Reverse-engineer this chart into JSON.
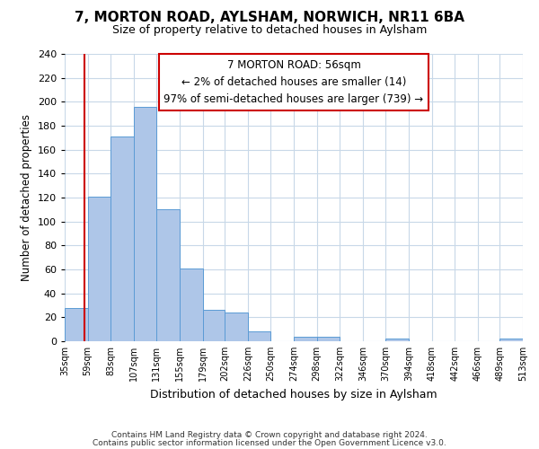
{
  "title": "7, MORTON ROAD, AYLSHAM, NORWICH, NR11 6BA",
  "subtitle": "Size of property relative to detached houses in Aylsham",
  "xlabel": "Distribution of detached houses by size in Aylsham",
  "ylabel": "Number of detached properties",
  "bar_edges": [
    35,
    59,
    83,
    107,
    131,
    155,
    179,
    202,
    226,
    250,
    274,
    298,
    322,
    346,
    370,
    394,
    418,
    442,
    466,
    489,
    513
  ],
  "bar_heights": [
    28,
    121,
    171,
    196,
    110,
    61,
    26,
    24,
    8,
    0,
    4,
    4,
    0,
    0,
    2,
    0,
    0,
    0,
    0,
    2
  ],
  "bar_color": "#aec6e8",
  "bar_edge_color": "#5b9bd5",
  "property_line_x": 56,
  "property_line_color": "#cc0000",
  "ylim": [
    0,
    240
  ],
  "yticks": [
    0,
    20,
    40,
    60,
    80,
    100,
    120,
    140,
    160,
    180,
    200,
    220,
    240
  ],
  "xlabels": [
    "35sqm",
    "59sqm",
    "83sqm",
    "107sqm",
    "131sqm",
    "155sqm",
    "179sqm",
    "202sqm",
    "226sqm",
    "250sqm",
    "274sqm",
    "298sqm",
    "322sqm",
    "346sqm",
    "370sqm",
    "394sqm",
    "418sqm",
    "442sqm",
    "466sqm",
    "489sqm",
    "513sqm"
  ],
  "annotation_title": "7 MORTON ROAD: 56sqm",
  "annotation_line1": "← 2% of detached houses are smaller (14)",
  "annotation_line2": "97% of semi-detached houses are larger (739) →",
  "annotation_box_color": "#ffffff",
  "annotation_box_edge_color": "#cc0000",
  "footer1": "Contains HM Land Registry data © Crown copyright and database right 2024.",
  "footer2": "Contains public sector information licensed under the Open Government Licence v3.0.",
  "background_color": "#ffffff",
  "grid_color": "#c8d8e8"
}
